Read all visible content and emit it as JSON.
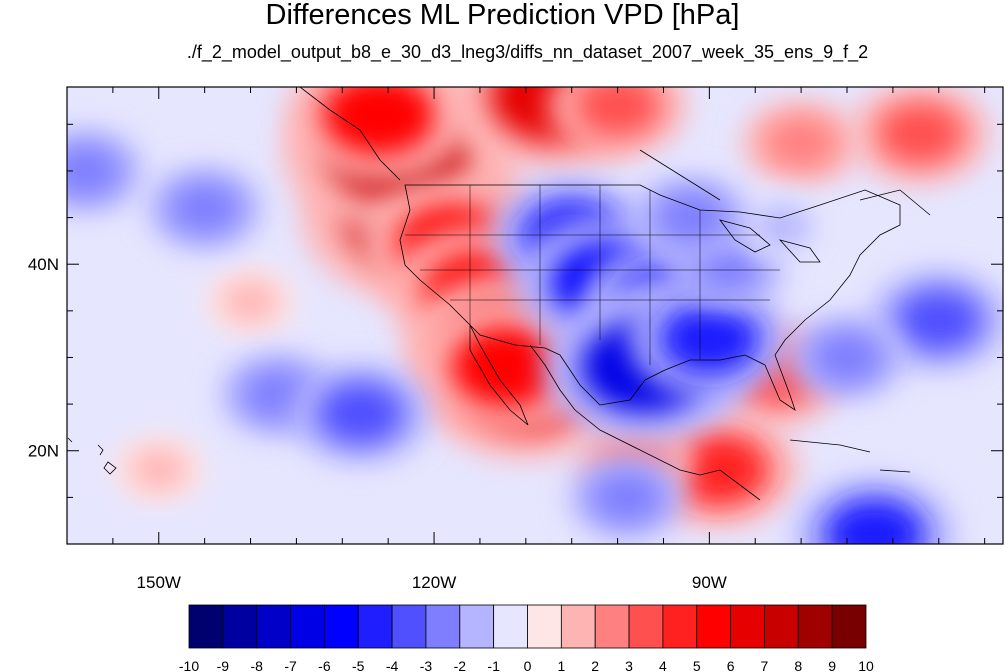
{
  "title": "Differences ML Prediction VPD [hPa]",
  "subtitle": "./f_2_model_output_b8_e_30_d3_lneg3/diffs_nn_dataset_2007_week_35_ens_9_f_2",
  "chart_data": {
    "type": "heatmap",
    "title": "Differences ML Prediction VPD [hPa]",
    "subtitle": "./f_2_model_output_b8_e_30_d3_lneg3/diffs_nn_dataset_2007_week_35_ens_9_f_2",
    "lon_range": [
      -160,
      -58
    ],
    "lat_range": [
      10,
      59
    ],
    "x_ticks": [
      {
        "value": -150,
        "label": "150W"
      },
      {
        "value": -120,
        "label": "120W"
      },
      {
        "value": -90,
        "label": "90W"
      }
    ],
    "y_ticks": [
      {
        "value": 20,
        "label": "20N"
      },
      {
        "value": 40,
        "label": "40N"
      }
    ],
    "colorbar": {
      "levels": [
        -10,
        -9,
        -8,
        -7,
        -6,
        -5,
        -4,
        -3,
        -2,
        -1,
        0,
        1,
        2,
        3,
        4,
        5,
        6,
        7,
        8,
        9,
        10
      ],
      "labels": [
        "-10",
        "-9",
        "-8",
        "-7",
        "-6",
        "-5",
        "-4",
        "-3",
        "-2",
        "-1",
        "0",
        "1",
        "2",
        "3",
        "4",
        "5",
        "6",
        "7",
        "8",
        "9",
        "10"
      ],
      "colors": [
        "#00006e",
        "#0000a0",
        "#0000c8",
        "#0000e6",
        "#0000ff",
        "#1e1eff",
        "#5050ff",
        "#7e7eff",
        "#b4b4ff",
        "#e6e6ff",
        "#ffe6e6",
        "#ffb4b4",
        "#ff8080",
        "#ff5050",
        "#ff2020",
        "#ff0000",
        "#e60000",
        "#c80000",
        "#a00000",
        "#780000"
      ]
    },
    "background_value": -1,
    "anomalies": [
      {
        "lon": -122,
        "lat": 45,
        "value": 7
      },
      {
        "lon": -124,
        "lat": 52,
        "value": 7
      },
      {
        "lon": -126,
        "lat": 56,
        "value": 5
      },
      {
        "lon": -118,
        "lat": 42,
        "value": 5
      },
      {
        "lon": -115,
        "lat": 37,
        "value": 5
      },
      {
        "lon": -112,
        "lat": 31,
        "value": 6
      },
      {
        "lon": -110,
        "lat": 27,
        "value": 6
      },
      {
        "lon": -112,
        "lat": 29,
        "value": 5
      },
      {
        "lon": -107,
        "lat": 58,
        "value": 6
      },
      {
        "lon": -100,
        "lat": 57,
        "value": 3
      },
      {
        "lon": -67,
        "lat": 54,
        "value": 3
      },
      {
        "lon": -80,
        "lat": 53,
        "value": 2
      },
      {
        "lon": -83,
        "lat": 28,
        "value": 3
      },
      {
        "lon": -89,
        "lat": 18,
        "value": 4
      },
      {
        "lon": -98,
        "lat": 19,
        "value": 2
      },
      {
        "lon": -140,
        "lat": 36,
        "value": 1
      },
      {
        "lon": -105,
        "lat": 43,
        "value": -4
      },
      {
        "lon": -101,
        "lat": 38,
        "value": -5
      },
      {
        "lon": -95,
        "lat": 36,
        "value": -4
      },
      {
        "lon": -94,
        "lat": 32,
        "value": -4
      },
      {
        "lon": -97,
        "lat": 29,
        "value": -6
      },
      {
        "lon": -90,
        "lat": 32,
        "value": -4
      },
      {
        "lon": -88,
        "lat": 40,
        "value": -2
      },
      {
        "lon": -65,
        "lat": 34,
        "value": -3
      },
      {
        "lon": -75,
        "lat": 30,
        "value": -2
      },
      {
        "lon": -137,
        "lat": 26,
        "value": -2
      },
      {
        "lon": -128,
        "lat": 24,
        "value": -3
      },
      {
        "lon": -158,
        "lat": 50,
        "value": -2
      },
      {
        "lon": -145,
        "lat": 46,
        "value": -2
      },
      {
        "lon": -99,
        "lat": 15,
        "value": -2
      },
      {
        "lon": -72,
        "lat": 11,
        "value": -4
      },
      {
        "lon": -150,
        "lat": 18,
        "value": 1
      },
      {
        "lon": -82,
        "lat": 44,
        "value": -1
      },
      {
        "lon": -92,
        "lat": 45,
        "value": -2
      }
    ]
  }
}
